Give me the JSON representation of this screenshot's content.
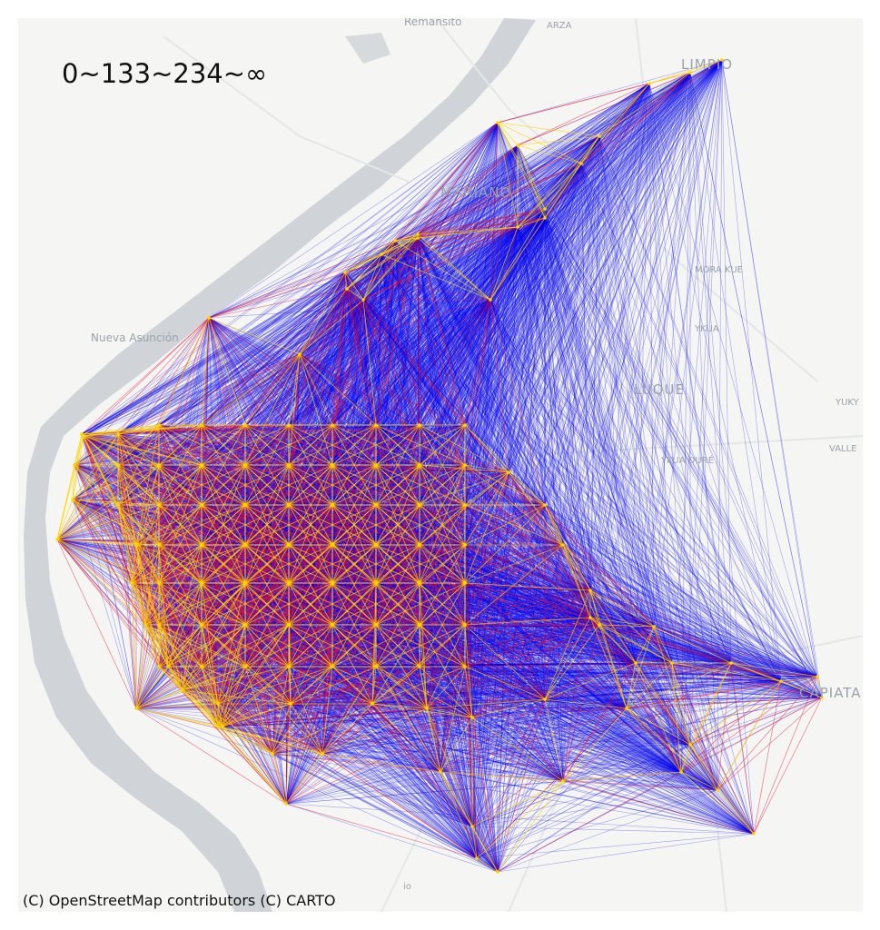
{
  "map": {
    "title": "0~133~234~∞",
    "attribution": "(C) OpenStreetMap contributors (C) CARTO",
    "places": [
      {
        "id": "remansito",
        "label": "Remansito"
      },
      {
        "id": "arza",
        "label": "ARZA"
      },
      {
        "id": "limpio",
        "label": "LIMPIO"
      },
      {
        "id": "mariano",
        "label": "MARIANO"
      },
      {
        "id": "mora-kue",
        "label": "MORA KUE"
      },
      {
        "id": "nueva-asuncion",
        "label": "Nueva Asunción"
      },
      {
        "id": "ykua",
        "label": "YKUA"
      },
      {
        "id": "luque",
        "label": "LUQUE"
      },
      {
        "id": "ykua-dure",
        "label": "YKUA DURÉ"
      },
      {
        "id": "yuky",
        "label": "YUKY"
      },
      {
        "id": "valle",
        "label": "VALLE"
      },
      {
        "id": "capiata",
        "label": "CAPIATA"
      },
      {
        "id": "io",
        "label": "io"
      }
    ],
    "colors": {
      "background": "#f5f5f3",
      "river": "#c9ced3",
      "band_0_133": "#ffd700",
      "band_133_234": "#e01030",
      "band_234_inf": "#0000ee"
    }
  }
}
